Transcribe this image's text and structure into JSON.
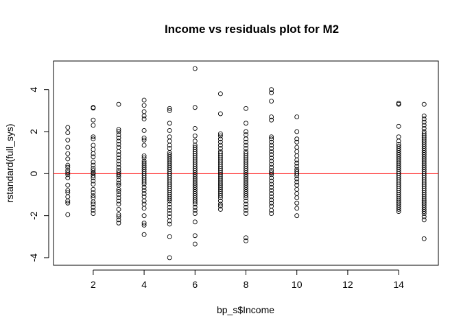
{
  "chart_data": {
    "type": "scatter",
    "title": "Income vs residuals plot for M2",
    "xlabel": "bp_s$Income",
    "ylabel": "rstandard(full_sys)",
    "xlim": [
      0.44,
      15.56
    ],
    "ylim": [
      -4.36,
      5.36
    ],
    "x_ticks": [
      2,
      4,
      6,
      8,
      10,
      12,
      14
    ],
    "y_ticks": [
      -4,
      -2,
      0,
      2,
      4
    ],
    "x_tick_labels": [
      "2",
      "4",
      "6",
      "8",
      "10",
      "12",
      "14"
    ],
    "y_tick_labels": [
      "-4",
      "-2",
      "0",
      "2",
      "4"
    ],
    "grid": false,
    "reference_line": {
      "y": 0,
      "color": "#ff0000"
    },
    "marker": "open-circle",
    "marker_color": "#000000",
    "series": [
      {
        "x": 1,
        "values": [
          2.2,
          1.95,
          1.6,
          1.25,
          0.95,
          0.7,
          0.4,
          0.3,
          0.15,
          0.05,
          -0.05,
          -0.2,
          -0.55,
          -0.8,
          -0.9,
          -1.1,
          -1.3,
          -1.4,
          -1.95
        ]
      },
      {
        "x": 2,
        "values": [
          3.15,
          3.12,
          2.55,
          2.3,
          1.75,
          1.65,
          1.35,
          1.15,
          0.95,
          0.8,
          0.55,
          0.4,
          0.25,
          0.15,
          0.05,
          0.0,
          -0.1,
          -0.2,
          -0.35,
          -0.5,
          -0.75,
          -0.9,
          -1.05,
          -1.15,
          -1.35,
          -1.45,
          -1.6,
          -1.75,
          -1.9
        ]
      },
      {
        "x": 3,
        "values": [
          3.3,
          2.1,
          2.0,
          1.85,
          1.7,
          1.55,
          1.4,
          1.25,
          1.05,
          0.9,
          0.75,
          0.6,
          0.45,
          0.3,
          0.15,
          0.05,
          -0.05,
          -0.15,
          -0.3,
          -0.45,
          -0.55,
          -0.75,
          -0.85,
          -1.0,
          -1.15,
          -1.3,
          -1.45,
          -1.7,
          -1.95,
          -2.05,
          -2.2,
          -2.35
        ]
      },
      {
        "x": 4,
        "values": [
          3.5,
          3.25,
          2.95,
          2.75,
          2.6,
          2.05,
          1.7,
          1.6,
          1.35,
          0.85,
          0.75,
          0.6,
          0.5,
          0.4,
          0.3,
          0.2,
          0.1,
          0.0,
          -0.1,
          -0.2,
          -0.3,
          -0.4,
          -0.5,
          -0.65,
          -0.8,
          -0.95,
          -1.1,
          -1.3,
          -1.45,
          -1.65,
          -2.0,
          -2.35,
          -2.45,
          -2.9
        ]
      },
      {
        "x": 5,
        "values": [
          3.1,
          3.0,
          2.4,
          2.05,
          1.75,
          1.55,
          1.35,
          1.2,
          1.0,
          0.9,
          0.8,
          0.7,
          0.6,
          0.5,
          0.4,
          0.3,
          0.2,
          0.1,
          0.0,
          -0.1,
          -0.2,
          -0.3,
          -0.4,
          -0.5,
          -0.6,
          -0.7,
          -0.8,
          -0.9,
          -1.0,
          -1.1,
          -1.2,
          -1.3,
          -1.45,
          -1.6,
          -1.75,
          -1.9,
          -2.05,
          -2.25,
          -2.4,
          -3.0,
          -4.0
        ]
      },
      {
        "x": 6,
        "values": [
          5.0,
          3.15,
          2.15,
          1.8,
          1.55,
          1.35,
          1.25,
          1.15,
          1.05,
          0.95,
          0.85,
          0.75,
          0.65,
          0.55,
          0.45,
          0.35,
          0.25,
          0.15,
          0.05,
          -0.05,
          -0.15,
          -0.25,
          -0.35,
          -0.45,
          -0.55,
          -0.65,
          -0.75,
          -0.85,
          -0.95,
          -1.05,
          -1.15,
          -1.25,
          -1.35,
          -1.45,
          -1.6,
          -1.75,
          -1.9,
          -2.3,
          -2.95,
          -3.35
        ]
      },
      {
        "x": 7,
        "values": [
          3.8,
          2.85,
          1.9,
          1.8,
          1.65,
          1.5,
          1.35,
          1.2,
          1.05,
          0.95,
          0.85,
          0.75,
          0.65,
          0.55,
          0.45,
          0.35,
          0.25,
          0.15,
          0.05,
          -0.05,
          -0.15,
          -0.25,
          -0.35,
          -0.45,
          -0.55,
          -0.65,
          -0.75,
          -0.85,
          -0.95,
          -1.05,
          -1.15,
          -1.3,
          -1.45,
          -1.55,
          -1.7
        ]
      },
      {
        "x": 8,
        "values": [
          3.1,
          2.4,
          2.0,
          1.85,
          1.65,
          1.5,
          1.35,
          1.2,
          1.05,
          0.95,
          0.85,
          0.75,
          0.65,
          0.55,
          0.45,
          0.35,
          0.25,
          0.15,
          0.05,
          -0.05,
          -0.15,
          -0.25,
          -0.35,
          -0.45,
          -0.55,
          -0.65,
          -0.75,
          -0.85,
          -0.95,
          -1.05,
          -1.15,
          -1.3,
          -1.45,
          -1.6,
          -1.75,
          -1.9,
          -3.05,
          -3.2
        ]
      },
      {
        "x": 9,
        "values": [
          4.0,
          3.85,
          3.45,
          2.7,
          2.55,
          1.75,
          1.65,
          1.5,
          1.35,
          1.2,
          1.05,
          0.9,
          0.75,
          0.6,
          0.45,
          0.3,
          0.15,
          0.05,
          -0.05,
          -0.2,
          -0.35,
          -0.5,
          -0.65,
          -0.8,
          -0.95,
          -1.1,
          -1.25,
          -1.4,
          -1.55,
          -1.75,
          -1.9
        ]
      },
      {
        "x": 10,
        "values": [
          2.7,
          2.0,
          1.65,
          1.5,
          1.25,
          1.05,
          0.85,
          0.65,
          0.5,
          0.35,
          0.2,
          0.1,
          0.0,
          -0.1,
          -0.25,
          -0.4,
          -0.55,
          -0.75,
          -0.95,
          -1.15,
          -1.4,
          -1.65,
          -2.0
        ]
      },
      {
        "x": 14,
        "values": [
          3.35,
          3.3,
          2.25,
          1.75,
          1.55,
          1.4,
          1.3,
          1.2,
          1.1,
          1.0,
          0.9,
          0.8,
          0.7,
          0.6,
          0.5,
          0.4,
          0.3,
          0.2,
          0.1,
          0.0,
          -0.1,
          -0.2,
          -0.3,
          -0.4,
          -0.5,
          -0.6,
          -0.7,
          -0.8,
          -0.9,
          -1.0,
          -1.1,
          -1.2,
          -1.3,
          -1.4,
          -1.5,
          -1.6,
          -1.7,
          -1.8
        ]
      },
      {
        "x": 15,
        "values": [
          3.3,
          2.75,
          2.6,
          2.45,
          2.3,
          2.15,
          2.0,
          1.9,
          1.8,
          1.7,
          1.6,
          1.5,
          1.4,
          1.3,
          1.2,
          1.1,
          1.0,
          0.9,
          0.8,
          0.7,
          0.6,
          0.5,
          0.4,
          0.3,
          0.2,
          0.1,
          0.0,
          -0.1,
          -0.2,
          -0.3,
          -0.4,
          -0.5,
          -0.6,
          -0.7,
          -0.8,
          -0.9,
          -1.0,
          -1.1,
          -1.2,
          -1.3,
          -1.4,
          -1.5,
          -1.6,
          -1.7,
          -1.8,
          -1.9,
          -2.05,
          -2.2,
          -3.1
        ]
      }
    ]
  }
}
